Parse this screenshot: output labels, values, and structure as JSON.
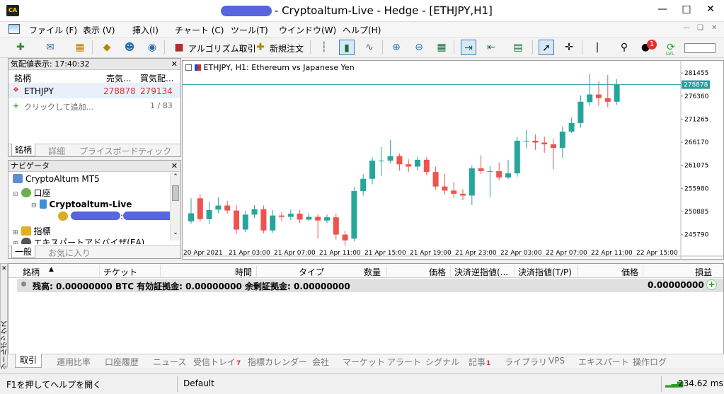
{
  "window": {
    "title": "- Cryptoaltum-Live - Hedge - [ETHJPY,H1]",
    "app_icon": "CA"
  },
  "menu": [
    "ファイル (F)",
    "表示 (V)",
    "挿入(I)",
    "チャート (C)",
    "ツール(T)",
    "ウインドウ(W)",
    "ヘルプ(H)"
  ],
  "toolbar": {
    "algo_label": "アルゴリズム取引",
    "new_order_label": "新規注文",
    "notify_count": "1",
    "level_label": "LVL",
    "level_fraction": 0.85
  },
  "market_watch": {
    "header": "気配値表示: 17:40:32",
    "col_symbol": "銘柄",
    "col_bid": "売気...",
    "col_ask": "買気配...",
    "row": {
      "symbol": "ETHJPY",
      "bid": "278878",
      "ask": "279134"
    },
    "add_label": "クリックして追加...",
    "count": "1 / 83",
    "tabs": [
      "銘柄",
      "詳細",
      "プライスボード",
      "ティック"
    ]
  },
  "navigator": {
    "header": "ナビゲータ",
    "root": "CryptoAltum MT5",
    "accounts": "口座",
    "account_name": "Cryptoaltum-Live",
    "account_sep": ":",
    "indicators": "指標",
    "experts": "エキスパートアドバイザ(EA)",
    "tabs": [
      "一般",
      "お気に入り"
    ]
  },
  "chart": {
    "title": "ETHJPY, H1:  Ethereum vs Japanese Yen",
    "price_tag": "278878"
  },
  "chart_data": {
    "type": "candlestick",
    "title": "ETHJPY, H1:  Ethereum vs Japanese Yen",
    "ylim": [
      242300,
      283500
    ],
    "y_ticks": [
      281455,
      276360,
      271265,
      266170,
      261075,
      255980,
      250885,
      245790
    ],
    "x_ticks": [
      "20 Apr 2021",
      "21 Apr 03:00",
      "21 Apr 07:00",
      "21 Apr 11:00",
      "21 Apr 15:00",
      "21 Apr 19:00",
      "21 Apr 23:00",
      "22 Apr 03:00",
      "22 Apr 07:00",
      "22 Apr 11:00",
      "22 Apr 15:00"
    ],
    "last_price": 278878,
    "up_color": "#26a69a",
    "down_color": "#ef5350",
    "candles": [
      [
        248700,
        250500,
        253800,
        248200
      ],
      [
        253800,
        249200,
        254700,
        248600
      ],
      [
        249200,
        251200,
        253100,
        248100
      ],
      [
        251300,
        252200,
        254000,
        250500
      ],
      [
        252200,
        251100,
        253200,
        250400
      ],
      [
        251100,
        246900,
        252300,
        246000
      ],
      [
        246900,
        250200,
        251100,
        246300
      ],
      [
        250200,
        251400,
        252300,
        249500
      ],
      [
        251400,
        246700,
        252200,
        246100
      ],
      [
        246700,
        250000,
        251200,
        246200
      ],
      [
        250000,
        249700,
        250800,
        248800
      ],
      [
        249700,
        250400,
        251300,
        249000
      ],
      [
        250400,
        249100,
        251200,
        248300
      ],
      [
        249100,
        249700,
        250500,
        248800
      ],
      [
        249700,
        248900,
        250300,
        244900
      ],
      [
        248900,
        249600,
        250200,
        248300
      ],
      [
        249600,
        245800,
        250400,
        244700
      ],
      [
        245800,
        244500,
        246600,
        243300
      ],
      [
        244900,
        255400,
        256300,
        244300
      ],
      [
        255400,
        258100,
        259100,
        254400
      ],
      [
        258100,
        262100,
        262800,
        256900
      ],
      [
        262100,
        262100,
        265100,
        258700
      ],
      [
        262100,
        263100,
        266700,
        261500
      ],
      [
        263100,
        261300,
        263700,
        259900
      ],
      [
        261300,
        260800,
        262400,
        259600
      ],
      [
        260800,
        262300,
        263000,
        259900
      ],
      [
        262300,
        259600,
        262900,
        258900
      ],
      [
        259600,
        256400,
        260800,
        255700
      ],
      [
        256400,
        255500,
        259200,
        254600
      ],
      [
        255500,
        254800,
        257400,
        253900
      ],
      [
        254800,
        254400,
        255800,
        253400
      ],
      [
        254400,
        260400,
        261100,
        252300
      ],
      [
        260400,
        259800,
        263300,
        259100
      ],
      [
        259800,
        259800,
        261000,
        254000
      ],
      [
        259800,
        258400,
        261700,
        257800
      ],
      [
        258400,
        259300,
        262300,
        258000
      ],
      [
        259300,
        266500,
        267300,
        258600
      ],
      [
        266500,
        266500,
        268900,
        264800
      ],
      [
        266500,
        266100,
        267900,
        264500
      ],
      [
        266100,
        265700,
        267400,
        263800
      ],
      [
        265700,
        264900,
        266800,
        260200
      ],
      [
        264900,
        268500,
        269600,
        262700
      ],
      [
        268500,
        270400,
        271600,
        268200
      ],
      [
        270400,
        275100,
        276500,
        269400
      ],
      [
        275000,
        276700,
        281300,
        274200
      ],
      [
        276700,
        275900,
        279600,
        274200
      ],
      [
        275900,
        275100,
        281000,
        273900
      ],
      [
        275100,
        278900,
        280100,
        274400
      ]
    ]
  },
  "toolbox": {
    "side_label": "ツールボックス",
    "columns": [
      "銘柄",
      "チケット",
      "時間",
      "タイプ",
      "数量",
      "価格",
      "決済逆指値(...",
      "決済指値(T/P)",
      "価格",
      "損益"
    ],
    "balance_line": "残高: 0.00000000 BTC  有効証拠金: 0.00000000  余剰証拠金: 0.00000000",
    "profit": "0.00000000",
    "tabs": [
      {
        "label": "取引",
        "badge": ""
      },
      {
        "label": "運用比率",
        "badge": ""
      },
      {
        "label": "口座履歴",
        "badge": ""
      },
      {
        "label": "ニュース",
        "badge": ""
      },
      {
        "label": "受信トレイ",
        "badge": "7"
      },
      {
        "label": "指標カレンダー",
        "badge": ""
      },
      {
        "label": "会社",
        "badge": ""
      },
      {
        "label": "マーケット",
        "badge": ""
      },
      {
        "label": "アラート",
        "badge": ""
      },
      {
        "label": "シグナル",
        "badge": ""
      },
      {
        "label": "記事",
        "badge": "1"
      },
      {
        "label": "ライブラリ",
        "badge": ""
      },
      {
        "label": "VPS",
        "badge": ""
      },
      {
        "label": "エキスパート",
        "badge": ""
      },
      {
        "label": "操作ログ",
        "badge": ""
      }
    ]
  },
  "status": {
    "help": "F1を押してヘルプを開く",
    "profile": "Default",
    "traffic": "234.62 ms"
  }
}
